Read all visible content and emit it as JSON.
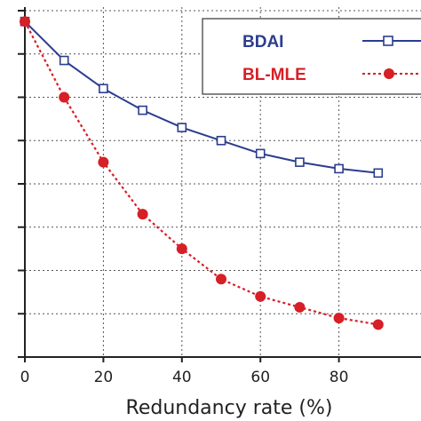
{
  "chart_data": {
    "type": "line",
    "xlabel": "Redundancy rate (%)",
    "ylabel": "",
    "xlim": [
      0,
      100
    ],
    "ylim": [
      0,
      8
    ],
    "x_ticks": [
      0,
      20,
      40,
      60,
      80
    ],
    "x_tick_labels": [
      "0",
      "20",
      "40",
      "60",
      "80"
    ],
    "y_ticks": [
      0,
      1,
      2,
      3,
      4,
      5,
      6,
      7,
      8
    ],
    "grid": true,
    "legend_position": "top-right",
    "x": [
      0,
      10,
      20,
      30,
      40,
      50,
      60,
      70,
      80,
      90
    ],
    "series": [
      {
        "name": "BDAI",
        "color": "#2b3d8f",
        "line_style": "solid",
        "marker": "open-square",
        "values": [
          7.75,
          6.85,
          6.2,
          5.7,
          5.3,
          5.0,
          4.7,
          4.5,
          4.35,
          4.25
        ]
      },
      {
        "name": "BL-MLE",
        "color": "#d61f26",
        "line_style": "dotted",
        "marker": "filled-circle",
        "values": [
          7.75,
          6.0,
          4.5,
          3.3,
          2.5,
          1.8,
          1.4,
          1.15,
          0.9,
          0.75
        ]
      }
    ]
  }
}
